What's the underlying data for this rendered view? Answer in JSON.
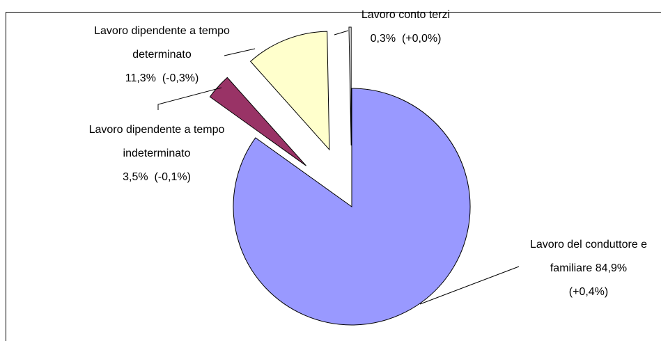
{
  "chart_data": {
    "type": "pie",
    "categories": [
      "Lavoro del conduttore e familiare",
      "Lavoro dipendente a tempo indeterminato",
      "Lavoro dipendente a tempo determinato",
      "Lavoro conto terzi"
    ],
    "values": [
      84.9,
      3.5,
      11.3,
      0.3
    ],
    "value_labels": [
      "84,9%",
      "3,5%",
      "11,3%",
      "0,3%"
    ],
    "changes": [
      "(+0,4%)",
      "(-0,1%)",
      "(-0,3%)",
      "(+0,0%)"
    ],
    "colors": [
      "#9999ff",
      "#993366",
      "#ffffcc",
      "#ffffff"
    ]
  }
}
